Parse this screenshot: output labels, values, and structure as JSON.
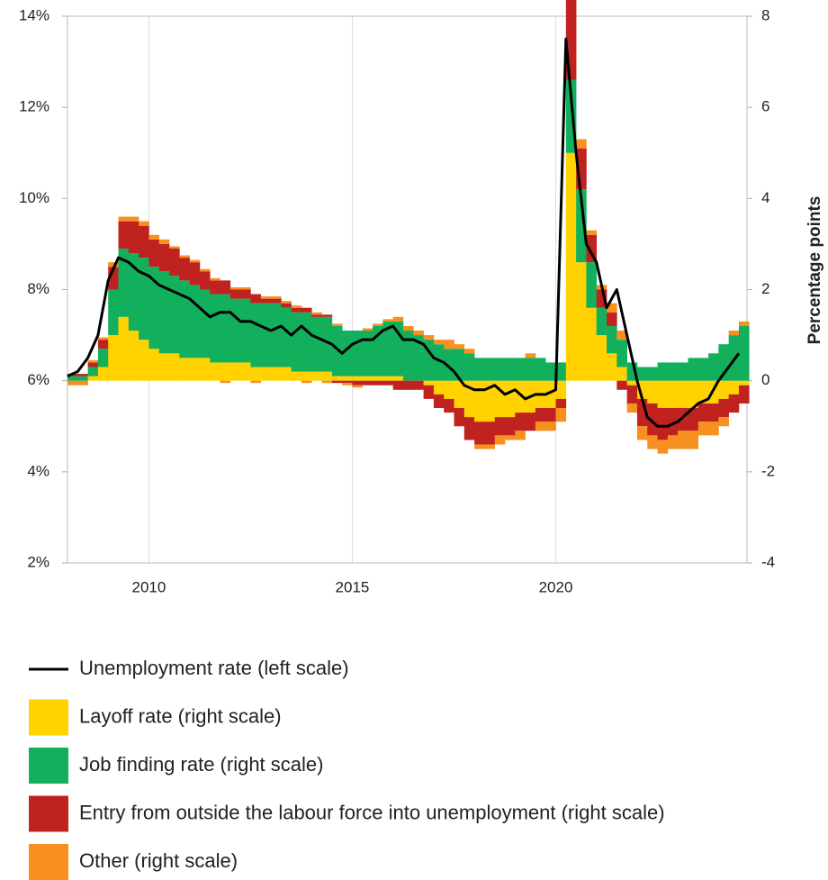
{
  "chart_data": {
    "type": "bar",
    "y2label": "Percentage points",
    "x": [
      2008,
      2008.25,
      2008.5,
      2008.75,
      2009,
      2009.25,
      2009.5,
      2009.75,
      2010,
      2010.25,
      2010.5,
      2010.75,
      2011,
      2011.25,
      2011.5,
      2011.75,
      2012,
      2012.25,
      2012.5,
      2012.75,
      2013,
      2013.25,
      2013.5,
      2013.75,
      2014,
      2014.25,
      2014.5,
      2014.75,
      2015,
      2015.25,
      2015.5,
      2015.75,
      2016,
      2016.25,
      2016.5,
      2016.75,
      2017,
      2017.25,
      2017.5,
      2017.75,
      2018,
      2018.25,
      2018.5,
      2018.75,
      2019,
      2019.25,
      2019.5,
      2019.75,
      2020,
      2020.25,
      2020.5,
      2020.75,
      2021,
      2021.25,
      2021.5,
      2021.75,
      2022,
      2022.25,
      2022.5,
      2022.75,
      2023,
      2023.25,
      2023.5,
      2023.75,
      2024,
      2024.25,
      2024.5
    ],
    "series": [
      {
        "name": "Unemployment rate (left scale)",
        "type": "line",
        "color": "#000000",
        "values": [
          6.1,
          6.2,
          6.5,
          7.0,
          8.2,
          8.7,
          8.6,
          8.4,
          8.3,
          8.1,
          8.0,
          7.9,
          7.8,
          7.6,
          7.4,
          7.5,
          7.5,
          7.3,
          7.3,
          7.2,
          7.1,
          7.2,
          7.0,
          7.2,
          7.0,
          6.9,
          6.8,
          6.6,
          6.8,
          6.9,
          6.9,
          7.1,
          7.2,
          6.9,
          6.9,
          6.8,
          6.5,
          6.4,
          6.2,
          5.9,
          5.8,
          5.8,
          5.9,
          5.7,
          5.8,
          5.6,
          5.7,
          5.7,
          5.8,
          13.5,
          11.0,
          9.0,
          8.6,
          7.6,
          8.0,
          7.0,
          6.0,
          5.2,
          5.0,
          5.0,
          5.1,
          5.3,
          5.5,
          5.6,
          6.0,
          6.3,
          6.6
        ]
      },
      {
        "name": "Layoff rate (right scale)",
        "axis": "y2",
        "color": "#ffd200",
        "values": [
          0,
          0,
          0.1,
          0.3,
          1.0,
          1.4,
          1.1,
          0.9,
          0.7,
          0.6,
          0.6,
          0.5,
          0.5,
          0.5,
          0.4,
          0.4,
          0.4,
          0.4,
          0.3,
          0.3,
          0.3,
          0.3,
          0.2,
          0.2,
          0.2,
          0.2,
          0.1,
          0.1,
          0.1,
          0.1,
          0.1,
          0.1,
          0.1,
          0,
          0,
          -0.1,
          -0.3,
          -0.4,
          -0.6,
          -0.8,
          -0.9,
          -0.9,
          -0.8,
          -0.8,
          -0.7,
          -0.7,
          -0.6,
          -0.6,
          -0.4,
          5.0,
          2.6,
          1.6,
          1.0,
          0.6,
          0.3,
          -0.1,
          -0.4,
          -0.5,
          -0.6,
          -0.6,
          -0.6,
          -0.6,
          -0.5,
          -0.5,
          -0.4,
          -0.3,
          -0.1
        ]
      },
      {
        "name": "Job finding rate (right scale)",
        "axis": "y2",
        "color": "#12b05c",
        "values": [
          0.1,
          0.1,
          0.2,
          0.4,
          1.0,
          1.5,
          1.7,
          1.8,
          1.8,
          1.8,
          1.7,
          1.7,
          1.6,
          1.5,
          1.5,
          1.5,
          1.4,
          1.4,
          1.4,
          1.4,
          1.4,
          1.3,
          1.3,
          1.3,
          1.2,
          1.2,
          1.1,
          1.0,
          1.0,
          1.0,
          1.1,
          1.2,
          1.2,
          1.1,
          1.0,
          0.9,
          0.8,
          0.7,
          0.7,
          0.6,
          0.5,
          0.5,
          0.5,
          0.5,
          0.5,
          0.5,
          0.5,
          0.4,
          0.4,
          1.6,
          1.6,
          1.0,
          0.6,
          0.6,
          0.6,
          0.4,
          0.3,
          0.3,
          0.4,
          0.4,
          0.4,
          0.5,
          0.5,
          0.6,
          0.8,
          1.0,
          1.2
        ]
      },
      {
        "name": "Entry from outside the labour force into unemployment (right scale)",
        "axis": "y2",
        "color": "#c0221f",
        "values": [
          0.05,
          0.05,
          0.1,
          0.2,
          0.5,
          0.6,
          0.7,
          0.7,
          0.6,
          0.6,
          0.6,
          0.5,
          0.5,
          0.4,
          0.3,
          0.3,
          0.2,
          0.2,
          0.2,
          0.1,
          0.1,
          0.1,
          0.1,
          0.1,
          0.05,
          0.05,
          -0.05,
          -0.05,
          -0.1,
          -0.1,
          -0.1,
          -0.1,
          -0.2,
          -0.2,
          -0.2,
          -0.3,
          -0.3,
          -0.3,
          -0.4,
          -0.5,
          -0.5,
          -0.5,
          -0.4,
          -0.4,
          -0.4,
          -0.4,
          -0.3,
          -0.3,
          -0.2,
          2.2,
          0.9,
          0.6,
          0.4,
          0.3,
          -0.2,
          -0.4,
          -0.6,
          -0.7,
          -0.7,
          -0.6,
          -0.5,
          -0.5,
          -0.4,
          -0.4,
          -0.4,
          -0.4,
          -0.4
        ]
      },
      {
        "name": "Other (right scale)",
        "axis": "y2",
        "color": "#f7901e",
        "values": [
          -0.1,
          -0.1,
          0.05,
          0.05,
          0.1,
          0.1,
          0.1,
          0.1,
          0.1,
          0.1,
          0.05,
          0.05,
          0.05,
          0.05,
          0.05,
          -0.05,
          0.05,
          0.05,
          -0.05,
          0.05,
          0.05,
          0.05,
          0.05,
          -0.05,
          0.05,
          -0.05,
          0.05,
          -0.05,
          -0.05,
          0.05,
          0.05,
          0.05,
          0.1,
          0.1,
          0.1,
          0.1,
          0.1,
          0.2,
          0.1,
          0.1,
          -0.1,
          -0.1,
          -0.2,
          -0.1,
          -0.2,
          0.1,
          -0.2,
          -0.2,
          -0.3,
          0.3,
          0.2,
          0.1,
          0.1,
          0.2,
          0.2,
          -0.2,
          -0.3,
          -0.3,
          -0.3,
          -0.3,
          -0.4,
          -0.4,
          -0.3,
          -0.3,
          -0.2,
          0.1,
          0.1
        ]
      }
    ],
    "xlim": [
      2008,
      2024.7
    ],
    "xticks": [
      2010,
      2015,
      2020
    ],
    "ylim": [
      2,
      14
    ],
    "yticks": [
      {
        "value": 2,
        "label": "2%"
      },
      {
        "value": 4,
        "label": "4%"
      },
      {
        "value": 6,
        "label": "6%"
      },
      {
        "value": 8,
        "label": "8%"
      },
      {
        "value": 10,
        "label": "10%"
      },
      {
        "value": 12,
        "label": "12%"
      },
      {
        "value": 14,
        "label": "14%"
      }
    ],
    "y2lim": [
      -4,
      8
    ],
    "y2ticks": [
      -4,
      -2,
      0,
      2,
      4,
      6,
      8
    ],
    "grid": "x"
  }
}
